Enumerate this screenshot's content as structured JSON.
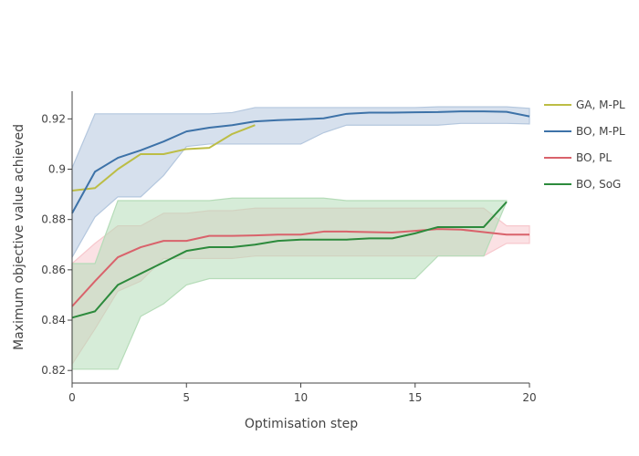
{
  "chart_data": {
    "type": "line",
    "title": "",
    "xlabel": "Optimisation step",
    "ylabel": "Maximum objective value achieved",
    "xlim": [
      0,
      20
    ],
    "ylim": [
      0.815,
      0.931
    ],
    "xticks": [
      0,
      5,
      10,
      15,
      20
    ],
    "xtick_labels": [
      "0",
      "5",
      "10",
      "15",
      "20"
    ],
    "yticks": [
      0.82,
      0.84,
      0.86,
      0.88,
      0.9,
      0.92
    ],
    "ytick_labels": [
      "0.82",
      "0.84",
      "0.86",
      "0.88",
      "0.9",
      "0.92"
    ],
    "grid": false,
    "legend_position": "right",
    "series": [
      {
        "name": "GA, M-PL",
        "color": "#bcbd45",
        "x": [
          0,
          1,
          2,
          3,
          4,
          5,
          6,
          7,
          8
        ],
        "y": [
          0.8915,
          0.8925,
          0.9,
          0.906,
          0.906,
          0.908,
          0.9085,
          0.914,
          0.9175
        ]
      },
      {
        "name": "BO, M-PL",
        "color": "#3d72a8",
        "band_color": "#b4c7de",
        "x": [
          0,
          1,
          2,
          3,
          4,
          5,
          6,
          7,
          8,
          9,
          10,
          11,
          12,
          13,
          14,
          15,
          16,
          17,
          18,
          19,
          20
        ],
        "y": [
          0.8825,
          0.899,
          0.9045,
          0.9075,
          0.911,
          0.915,
          0.9165,
          0.9175,
          0.919,
          0.9195,
          0.9198,
          0.9202,
          0.922,
          0.9225,
          0.9225,
          0.9226,
          0.9227,
          0.923,
          0.923,
          0.9228,
          0.921
        ],
        "upper": [
          0.9005,
          0.922,
          0.922,
          0.922,
          0.922,
          0.922,
          0.922,
          0.9225,
          0.9245,
          0.9245,
          0.9245,
          0.9245,
          0.9245,
          0.9245,
          0.9245,
          0.9245,
          0.9248,
          0.9248,
          0.9248,
          0.9248,
          0.9242
        ],
        "lower": [
          0.865,
          0.881,
          0.889,
          0.889,
          0.8975,
          0.909,
          0.91,
          0.91,
          0.91,
          0.91,
          0.91,
          0.9145,
          0.9175,
          0.9175,
          0.9175,
          0.9175,
          0.9175,
          0.9182,
          0.9182,
          0.9182,
          0.918
        ]
      },
      {
        "name": "BO, PL",
        "color": "#d9626b",
        "band_color": "#f7c8cd",
        "x": [
          0,
          1,
          2,
          3,
          4,
          5,
          6,
          7,
          8,
          9,
          10,
          11,
          12,
          13,
          14,
          15,
          16,
          17,
          18,
          19,
          20
        ],
        "y": [
          0.8455,
          0.8555,
          0.865,
          0.869,
          0.8715,
          0.8715,
          0.8735,
          0.8735,
          0.8737,
          0.874,
          0.874,
          0.8752,
          0.8752,
          0.875,
          0.8748,
          0.8755,
          0.8762,
          0.876,
          0.875,
          0.874,
          0.874
        ],
        "upper": [
          0.8625,
          0.8705,
          0.8775,
          0.8775,
          0.8825,
          0.8825,
          0.8835,
          0.8835,
          0.8845,
          0.8845,
          0.8845,
          0.8845,
          0.8845,
          0.8845,
          0.8845,
          0.8845,
          0.8845,
          0.8845,
          0.8845,
          0.8775,
          0.8775
        ],
        "lower": [
          0.8225,
          0.8365,
          0.8515,
          0.8555,
          0.8645,
          0.8645,
          0.8645,
          0.8645,
          0.8655,
          0.8655,
          0.8655,
          0.8655,
          0.8655,
          0.8655,
          0.8655,
          0.8655,
          0.8655,
          0.8655,
          0.8655,
          0.8705,
          0.8705
        ]
      },
      {
        "name": "BO, SoG",
        "color": "#2c8a3c",
        "band_color": "#b5dcb8",
        "x": [
          0,
          1,
          2,
          3,
          4,
          5,
          6,
          7,
          8,
          9,
          10,
          11,
          12,
          13,
          14,
          15,
          16,
          17,
          18,
          19
        ],
        "y": [
          0.841,
          0.8435,
          0.854,
          0.8585,
          0.863,
          0.8675,
          0.869,
          0.869,
          0.87,
          0.8715,
          0.872,
          0.872,
          0.872,
          0.8725,
          0.8725,
          0.8745,
          0.877,
          0.877,
          0.877,
          0.887
        ],
        "upper": [
          0.8625,
          0.8625,
          0.8875,
          0.8875,
          0.8875,
          0.8875,
          0.8875,
          0.8885,
          0.8885,
          0.8885,
          0.8885,
          0.8885,
          0.8875,
          0.8875,
          0.8875,
          0.8875,
          0.8875,
          0.8875,
          0.8875,
          0.8875
        ],
        "lower": [
          0.8205,
          0.8205,
          0.8205,
          0.8415,
          0.8465,
          0.854,
          0.8565,
          0.8565,
          0.8565,
          0.8565,
          0.8565,
          0.8565,
          0.8565,
          0.8565,
          0.8565,
          0.8565,
          0.8655,
          0.8655,
          0.8655,
          0.887
        ]
      }
    ]
  }
}
